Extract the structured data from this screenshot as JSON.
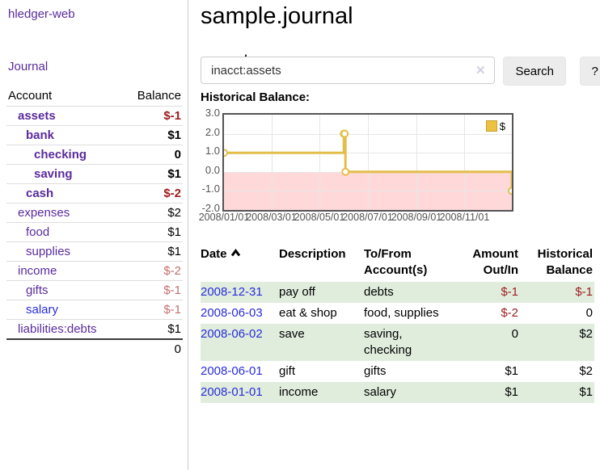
{
  "app": {
    "name": "hledger-web"
  },
  "sidebar": {
    "journal_label": "Journal",
    "headers": {
      "account": "Account",
      "balance": "Balance"
    },
    "accounts": [
      {
        "name": "assets",
        "balance": "$-1",
        "indent": 0,
        "bold": true,
        "link_color": "purple",
        "value_color": "neg-strong"
      },
      {
        "name": "bank",
        "balance": "$1",
        "indent": 1,
        "bold": true,
        "link_color": "purple",
        "value_color": "normal"
      },
      {
        "name": "checking",
        "balance": "0",
        "indent": 2,
        "bold": true,
        "link_color": "purple",
        "value_color": "normal"
      },
      {
        "name": "saving",
        "balance": "$1",
        "indent": 2,
        "bold": true,
        "link_color": "purple",
        "value_color": "normal"
      },
      {
        "name": "cash",
        "balance": "$-2",
        "indent": 1,
        "bold": true,
        "link_color": "purple",
        "value_color": "neg-strong"
      },
      {
        "name": "expenses",
        "balance": "$2",
        "indent": 0,
        "bold": false,
        "link_color": "purple",
        "value_color": "normal"
      },
      {
        "name": "food",
        "balance": "$1",
        "indent": 1,
        "bold": false,
        "link_color": "purple",
        "value_color": "normal"
      },
      {
        "name": "supplies",
        "balance": "$1",
        "indent": 1,
        "bold": false,
        "link_color": "purple",
        "value_color": "normal"
      },
      {
        "name": "income",
        "balance": "$-2",
        "indent": 0,
        "bold": false,
        "link_color": "purple",
        "value_color": "neg-soft"
      },
      {
        "name": "gifts",
        "balance": "$-1",
        "indent": 1,
        "bold": false,
        "link_color": "purple",
        "value_color": "neg-soft"
      },
      {
        "name": "salary",
        "balance": "$-1",
        "indent": 1,
        "bold": false,
        "link_color": "blue",
        "value_color": "neg-soft"
      },
      {
        "name": "liabilities:debts",
        "balance": "$1",
        "indent": 0,
        "bold": false,
        "link_color": "purple",
        "value_color": "normal"
      }
    ],
    "total": "0"
  },
  "header": {
    "title": "sample.journal"
  },
  "search": {
    "value": "inacct:assets",
    "clear_icon": "✕",
    "button_label": "Search",
    "help_label": "?"
  },
  "account_page": {
    "heading": "assets",
    "chart_label": "Historical Balance:"
  },
  "chart_data": {
    "type": "line",
    "step": true,
    "title": "Historical Balance:",
    "legend_entries": [
      "$"
    ],
    "legend_position": "top-right",
    "grid": true,
    "ylim": [
      -2,
      3
    ],
    "x_range": [
      "2008-01-01",
      "2008-12-31"
    ],
    "y_ticks": [
      "3.0",
      "2.0",
      "1.0",
      "0.0",
      "-1.0",
      "-2.0"
    ],
    "x_ticks": [
      "2008/01/01",
      "2008/03/01",
      "2008/05/01",
      "2008/07/01",
      "2008/09/01",
      "2008/11/01"
    ],
    "series": [
      {
        "name": "$",
        "points": [
          [
            "2008-01-01",
            1
          ],
          [
            "2008-06-01",
            2
          ],
          [
            "2008-06-02",
            2
          ],
          [
            "2008-06-03",
            0
          ],
          [
            "2008-12-31",
            -1
          ]
        ]
      }
    ],
    "colors": {
      "line": "#e4be4a",
      "marker_fill": "#ffffff",
      "negative_fill": "#ffd9d9",
      "zero_line": "#8b1a1a",
      "grid": "#e6e6e6",
      "border": "#545454",
      "legend_swatch": "#edc240",
      "legend_swatch_border": "#c9a02e"
    }
  },
  "register": {
    "headers": {
      "date": "Date",
      "description": "Description",
      "to_from": "To/From Account(s)",
      "amount": "Amount Out/In",
      "balance": "Historical Balance"
    },
    "rows": [
      {
        "date": "2008-12-31",
        "description": "pay off",
        "accounts": "debts",
        "amount": "$-1",
        "balance": "$-1"
      },
      {
        "date": "2008-06-03",
        "description": "eat & shop",
        "accounts": "food, supplies",
        "amount": "$-2",
        "balance": "0"
      },
      {
        "date": "2008-06-02",
        "description": "save",
        "accounts": "saving, checking",
        "amount": "0",
        "balance": "$2"
      },
      {
        "date": "2008-06-01",
        "description": "gift",
        "accounts": "gifts",
        "amount": "$1",
        "balance": "$2"
      },
      {
        "date": "2008-01-01",
        "description": "income",
        "accounts": "salary",
        "amount": "$1",
        "balance": "$1"
      }
    ]
  },
  "colors": {
    "purple": "#5a2b9c",
    "blue": "#2a2cd9",
    "negative_strong": "#9d1c1c",
    "negative_soft": "#c66f6f",
    "row_green": "#e0eddd",
    "button_bg": "#ececec"
  }
}
